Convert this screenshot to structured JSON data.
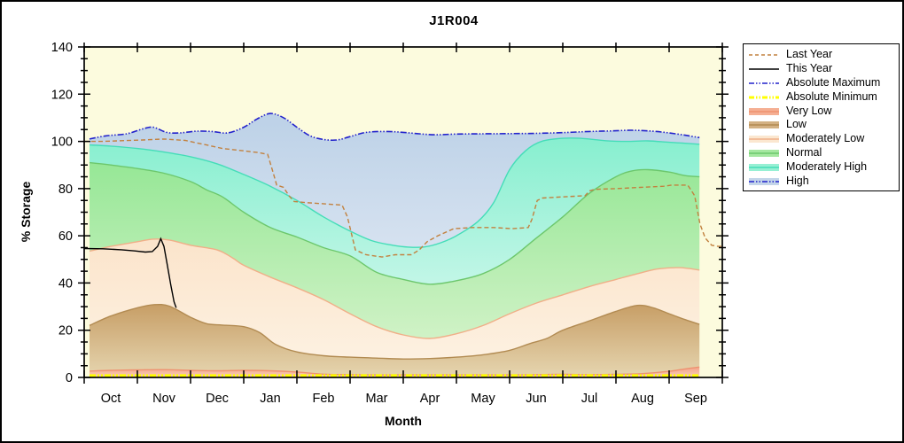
{
  "title": "J1R004",
  "y_axis": {
    "title": "% Storage",
    "min": 0,
    "max": 140,
    "major_ticks": [
      0,
      20,
      40,
      60,
      80,
      100,
      120,
      140
    ],
    "minor_step": 5
  },
  "x_axis": {
    "title": "Month",
    "categories": [
      "Oct",
      "Nov",
      "Dec",
      "Jan",
      "Feb",
      "Mar",
      "Apr",
      "May",
      "Jun",
      "Jul",
      "Aug",
      "Sep"
    ]
  },
  "plot_background": "#FCFBDE",
  "legend": {
    "items": [
      {
        "label": "Last Year",
        "type": "dash",
        "color": "#C2813F"
      },
      {
        "label": "This Year",
        "type": "solid",
        "color": "#000000"
      },
      {
        "label": "Absolute Maximum",
        "type": "dashdot",
        "color": "#2222CC"
      },
      {
        "label": "Absolute Minimum",
        "type": "dashdot-thick",
        "color": "#FFFF00"
      },
      {
        "label": "Very Low",
        "type": "band",
        "fill": "#F5AF93",
        "line": "#EE9270"
      },
      {
        "label": "Low",
        "type": "band",
        "fill": "#D3B183",
        "line": "#B28B52"
      },
      {
        "label": "Moderately Low",
        "type": "band",
        "fill": "#FBE7D0",
        "line": "#F0AF88"
      },
      {
        "label": "Normal",
        "type": "band",
        "fill": "#A5E8A0",
        "line": "#6CC76C"
      },
      {
        "label": "Moderately High",
        "type": "band",
        "fill": "#97F0D4",
        "line": "#44DDB8"
      },
      {
        "label": "High",
        "type": "band-dashdot",
        "fill": "#C3D5E9",
        "line": "#2222CC"
      }
    ]
  },
  "chart_data": {
    "type": "area",
    "title": "J1R004",
    "xlabel": "Month",
    "ylabel": "% Storage",
    "ylim": [
      0,
      140
    ],
    "x_unit": "months after Oct 1 (0-12)",
    "band_x_range": [
      0.1,
      11.57
    ],
    "bands": [
      {
        "id": "very-low",
        "label": "Very Low",
        "edge": "#EE9270",
        "fill_top": "#F3A489",
        "fill_bottom": "#F9CFB9",
        "points": [
          [
            0.1,
            2.7
          ],
          [
            0.5,
            3.0
          ],
          [
            1.0,
            3.2
          ],
          [
            1.5,
            3.3
          ],
          [
            2.0,
            3.0
          ],
          [
            2.5,
            2.8
          ],
          [
            3.0,
            3.0
          ],
          [
            3.5,
            2.8
          ],
          [
            4.0,
            2.3
          ],
          [
            4.5,
            1.4
          ],
          [
            5.0,
            1.2
          ],
          [
            5.5,
            1.1
          ],
          [
            6.0,
            1.1
          ],
          [
            6.5,
            1.1
          ],
          [
            7.0,
            1.1
          ],
          [
            7.5,
            1.1
          ],
          [
            8.0,
            1.1
          ],
          [
            8.5,
            1.2
          ],
          [
            9.0,
            1.3
          ],
          [
            9.5,
            1.2
          ],
          [
            10.0,
            1.3
          ],
          [
            10.5,
            1.6
          ],
          [
            11.0,
            2.6
          ],
          [
            11.3,
            3.6
          ],
          [
            11.57,
            4.4
          ]
        ]
      },
      {
        "id": "low",
        "label": "Low",
        "edge": "#B28B52",
        "fill_top": "#C79E66",
        "fill_bottom": "#E5D4AE",
        "points": [
          [
            0.1,
            22
          ],
          [
            0.5,
            26
          ],
          [
            1.0,
            29.5
          ],
          [
            1.3,
            30.8
          ],
          [
            1.6,
            30.2
          ],
          [
            2.0,
            25.5
          ],
          [
            2.3,
            22.8
          ],
          [
            2.6,
            22.2
          ],
          [
            3.0,
            21.5
          ],
          [
            3.3,
            19
          ],
          [
            3.6,
            14
          ],
          [
            4.0,
            10.8
          ],
          [
            4.5,
            9.2
          ],
          [
            5.0,
            8.6
          ],
          [
            5.5,
            8.2
          ],
          [
            6.0,
            7.8
          ],
          [
            6.5,
            8.0
          ],
          [
            7.0,
            8.6
          ],
          [
            7.5,
            9.6
          ],
          [
            8.0,
            11.5
          ],
          [
            8.4,
            14.5
          ],
          [
            8.7,
            16.5
          ],
          [
            9.0,
            20
          ],
          [
            9.5,
            24
          ],
          [
            10.0,
            28
          ],
          [
            10.4,
            30.5
          ],
          [
            10.7,
            29.5
          ],
          [
            11.0,
            27
          ],
          [
            11.3,
            24.5
          ],
          [
            11.57,
            22.5
          ]
        ]
      },
      {
        "id": "moderately-low",
        "label": "Moderately Low",
        "edge": "#F0AF88",
        "fill_top": "#FBE4CB",
        "fill_bottom": "#FDF1E1",
        "points": [
          [
            0.1,
            53.5
          ],
          [
            0.5,
            55.5
          ],
          [
            1.0,
            57.5
          ],
          [
            1.3,
            58.6
          ],
          [
            1.6,
            58.2
          ],
          [
            2.0,
            56
          ],
          [
            2.5,
            54
          ],
          [
            2.8,
            50.5
          ],
          [
            3.0,
            47.5
          ],
          [
            3.5,
            42.5
          ],
          [
            4.0,
            38
          ],
          [
            4.5,
            33
          ],
          [
            5.0,
            27
          ],
          [
            5.5,
            21.5
          ],
          [
            6.0,
            18
          ],
          [
            6.5,
            16.5
          ],
          [
            7.0,
            18.5
          ],
          [
            7.5,
            22
          ],
          [
            8.0,
            27
          ],
          [
            8.5,
            31.5
          ],
          [
            9.0,
            35
          ],
          [
            9.5,
            38.5
          ],
          [
            10.0,
            41.5
          ],
          [
            10.5,
            44.5
          ],
          [
            10.8,
            46
          ],
          [
            11.2,
            46.5
          ],
          [
            11.57,
            45.5
          ]
        ]
      },
      {
        "id": "normal",
        "label": "Normal",
        "edge": "#6CC76C",
        "fill_top": "#96E796",
        "fill_bottom": "#D0F2C6",
        "points": [
          [
            0.1,
            91
          ],
          [
            0.5,
            90
          ],
          [
            1.0,
            88.5
          ],
          [
            1.5,
            86.5
          ],
          [
            2.0,
            83
          ],
          [
            2.3,
            79.5
          ],
          [
            2.6,
            76.5
          ],
          [
            3.0,
            70
          ],
          [
            3.5,
            63.5
          ],
          [
            4.0,
            59.5
          ],
          [
            4.5,
            55
          ],
          [
            5.0,
            51.5
          ],
          [
            5.5,
            44.5
          ],
          [
            6.0,
            41.5
          ],
          [
            6.5,
            39.5
          ],
          [
            7.0,
            41
          ],
          [
            7.5,
            44
          ],
          [
            8.0,
            50
          ],
          [
            8.5,
            59
          ],
          [
            9.0,
            68
          ],
          [
            9.5,
            78
          ],
          [
            10.0,
            85
          ],
          [
            10.3,
            87.5
          ],
          [
            10.6,
            88
          ],
          [
            11.0,
            87
          ],
          [
            11.3,
            85.5
          ],
          [
            11.57,
            85
          ]
        ]
      },
      {
        "id": "moderately-high",
        "label": "Moderately High",
        "edge": "#44DDB8",
        "fill_top": "#87EFCF",
        "fill_bottom": "#C2F6E7",
        "points": [
          [
            0.1,
            98.5
          ],
          [
            0.5,
            98
          ],
          [
            1.0,
            97
          ],
          [
            1.5,
            95.5
          ],
          [
            2.0,
            93.5
          ],
          [
            2.5,
            90.5
          ],
          [
            3.0,
            86
          ],
          [
            3.5,
            81
          ],
          [
            4.0,
            75
          ],
          [
            4.5,
            68
          ],
          [
            5.0,
            62
          ],
          [
            5.4,
            58
          ],
          [
            5.8,
            56
          ],
          [
            6.1,
            55.2
          ],
          [
            6.4,
            55.3
          ],
          [
            6.7,
            57
          ],
          [
            7.0,
            60
          ],
          [
            7.4,
            66
          ],
          [
            7.7,
            74
          ],
          [
            8.0,
            88
          ],
          [
            8.3,
            96
          ],
          [
            8.6,
            100
          ],
          [
            9.0,
            101.3
          ],
          [
            9.4,
            101.2
          ],
          [
            9.8,
            100.3
          ],
          [
            10.2,
            100
          ],
          [
            10.6,
            100.2
          ],
          [
            11.0,
            99.6
          ],
          [
            11.3,
            99.2
          ],
          [
            11.57,
            98.8
          ]
        ]
      },
      {
        "id": "high",
        "label": "High",
        "edge": "#2222CC",
        "edge_style": "dashdot",
        "fill_top": "#BCD1E7",
        "fill_bottom": "#D6E2F0",
        "points": [
          [
            0.1,
            101
          ],
          [
            0.4,
            102.3
          ],
          [
            0.8,
            103.2
          ],
          [
            1.1,
            105.3
          ],
          [
            1.3,
            106
          ],
          [
            1.55,
            103.8
          ],
          [
            1.8,
            103.6
          ],
          [
            2.1,
            104.3
          ],
          [
            2.4,
            104.2
          ],
          [
            2.7,
            103.6
          ],
          [
            3.0,
            106
          ],
          [
            3.25,
            109.5
          ],
          [
            3.5,
            111.8
          ],
          [
            3.75,
            110
          ],
          [
            4.0,
            106
          ],
          [
            4.25,
            102.3
          ],
          [
            4.5,
            100.8
          ],
          [
            4.75,
            100.6
          ],
          [
            5.0,
            102
          ],
          [
            5.3,
            103.8
          ],
          [
            5.7,
            104.2
          ],
          [
            6.0,
            103.8
          ],
          [
            6.3,
            103.2
          ],
          [
            6.6,
            102.8
          ],
          [
            7.0,
            103.1
          ],
          [
            7.5,
            103.2
          ],
          [
            8.0,
            103.3
          ],
          [
            8.5,
            103.4
          ],
          [
            9.0,
            103.7
          ],
          [
            9.5,
            104.2
          ],
          [
            9.9,
            104.4
          ],
          [
            10.3,
            104.7
          ],
          [
            10.7,
            104.3
          ],
          [
            11.0,
            103.6
          ],
          [
            11.3,
            102.6
          ],
          [
            11.57,
            101.6
          ]
        ]
      }
    ],
    "lines": [
      {
        "id": "absolute-minimum",
        "label": "Absolute Minimum",
        "color": "#FFFF00",
        "width": 3,
        "dash": "7 2 2 2 2 2",
        "points": [
          [
            0.1,
            0.8
          ],
          [
            3.0,
            0.8
          ],
          [
            6.0,
            0.8
          ],
          [
            9.0,
            0.8
          ],
          [
            11.57,
            0.8
          ]
        ]
      },
      {
        "id": "last-year",
        "label": "Last Year",
        "color": "#C2813F",
        "width": 1.4,
        "dash": "5 3",
        "points": [
          [
            0,
            100
          ],
          [
            0.35,
            100
          ],
          [
            0.7,
            100.3
          ],
          [
            1.1,
            100.6
          ],
          [
            1.5,
            101
          ],
          [
            1.9,
            100.4
          ],
          [
            2.3,
            98.5
          ],
          [
            2.6,
            97
          ],
          [
            3.0,
            96
          ],
          [
            3.3,
            95.2
          ],
          [
            3.45,
            94.5
          ],
          [
            3.55,
            87
          ],
          [
            3.62,
            81.5
          ],
          [
            3.75,
            80.5
          ],
          [
            3.85,
            77
          ],
          [
            3.95,
            74.5
          ],
          [
            4.2,
            74
          ],
          [
            4.55,
            73.5
          ],
          [
            4.85,
            73
          ],
          [
            4.95,
            68
          ],
          [
            5.1,
            54
          ],
          [
            5.3,
            52
          ],
          [
            5.6,
            51
          ],
          [
            5.85,
            52
          ],
          [
            6.15,
            52
          ],
          [
            6.3,
            54
          ],
          [
            6.45,
            57.5
          ],
          [
            6.65,
            60
          ],
          [
            6.95,
            63
          ],
          [
            7.3,
            63.5
          ],
          [
            7.7,
            63.5
          ],
          [
            8.05,
            63
          ],
          [
            8.35,
            63.5
          ],
          [
            8.42,
            67
          ],
          [
            8.52,
            75
          ],
          [
            8.62,
            76
          ],
          [
            9.0,
            76.5
          ],
          [
            9.42,
            77
          ],
          [
            9.5,
            79
          ],
          [
            9.6,
            79.7
          ],
          [
            10.0,
            80
          ],
          [
            10.45,
            80.5
          ],
          [
            10.9,
            81
          ],
          [
            11.05,
            81.5
          ],
          [
            11.35,
            81.5
          ],
          [
            11.48,
            77
          ],
          [
            11.58,
            65
          ],
          [
            11.68,
            59
          ],
          [
            11.8,
            56
          ],
          [
            11.92,
            55.5
          ],
          [
            12,
            55.5
          ]
        ]
      },
      {
        "id": "this-year",
        "label": "This Year",
        "color": "#000000",
        "width": 1.4,
        "dash": null,
        "points": [
          [
            0,
            54.6
          ],
          [
            0.35,
            54.5
          ],
          [
            0.7,
            54.1
          ],
          [
            0.95,
            53.6
          ],
          [
            1.15,
            53.1
          ],
          [
            1.28,
            53.3
          ],
          [
            1.38,
            55.5
          ],
          [
            1.44,
            58.8
          ],
          [
            1.5,
            55.5
          ],
          [
            1.56,
            48
          ],
          [
            1.63,
            39
          ],
          [
            1.69,
            32
          ],
          [
            1.73,
            29.5
          ]
        ]
      }
    ]
  }
}
